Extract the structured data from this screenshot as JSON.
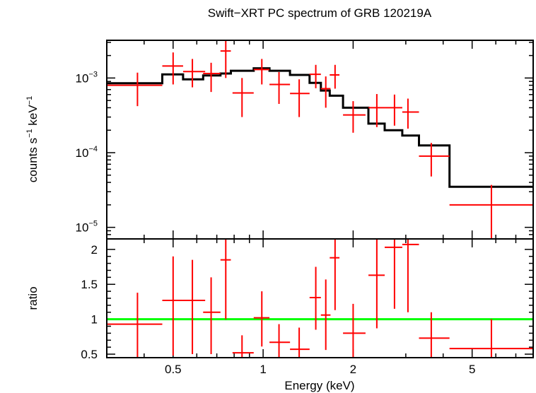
{
  "chart_data": {
    "type": "scatter",
    "title": "Swift−XRT PC spectrum of GRB 120219A",
    "xlabel": "Energy (keV)",
    "x_scale": "log",
    "xlim": [
      0.3,
      8.0
    ],
    "x_ticks": [
      {
        "value": 0.5,
        "label": "0.5"
      },
      {
        "value": 1,
        "label": "1"
      },
      {
        "value": 2,
        "label": "2"
      },
      {
        "value": 5,
        "label": "5"
      }
    ],
    "panels": [
      {
        "id": "spectrum",
        "ylabel": {
          "parts": [
            "counts s",
            "−1",
            " keV",
            "−1"
          ]
        },
        "y_scale": "log",
        "ylim": [
          7e-06,
          0.0032
        ],
        "y_ticks": [
          {
            "value": 0.001,
            "base": "10",
            "exp": "−3"
          },
          {
            "value": 0.0001,
            "base": "10",
            "exp": "−4"
          },
          {
            "value": 1e-05,
            "base": "10",
            "exp": "−5"
          }
        ],
        "data": {
          "name": "",
          "color": "#ff0000",
          "points": [
            {
              "x": 0.38,
              "xlo": 0.3,
              "xhi": 0.46,
              "y": 0.0008,
              "ylo": 0.00042,
              "yhi": 0.00118
            },
            {
              "x": 0.5,
              "xlo": 0.46,
              "xhi": 0.54,
              "y": 0.00145,
              "ylo": 0.00082,
              "yhi": 0.0022
            },
            {
              "x": 0.58,
              "xlo": 0.54,
              "xhi": 0.64,
              "y": 0.00122,
              "ylo": 0.00075,
              "yhi": 0.0018
            },
            {
              "x": 0.67,
              "xlo": 0.63,
              "xhi": 0.72,
              "y": 0.00115,
              "ylo": 0.00065,
              "yhi": 0.0016
            },
            {
              "x": 0.75,
              "xlo": 0.72,
              "xhi": 0.78,
              "y": 0.0023,
              "ylo": 0.001,
              "yhi": 0.0032
            },
            {
              "x": 0.85,
              "xlo": 0.79,
              "xhi": 0.93,
              "y": 0.00063,
              "ylo": 0.0003,
              "yhi": 0.001
            },
            {
              "x": 0.99,
              "xlo": 0.93,
              "xhi": 1.05,
              "y": 0.0013,
              "ylo": 0.00082,
              "yhi": 0.0018
            },
            {
              "x": 1.13,
              "xlo": 1.05,
              "xhi": 1.23,
              "y": 0.00082,
              "ylo": 0.00045,
              "yhi": 0.0012
            },
            {
              "x": 1.32,
              "xlo": 1.23,
              "xhi": 1.43,
              "y": 0.00062,
              "ylo": 0.0003,
              "yhi": 0.00096
            },
            {
              "x": 1.5,
              "xlo": 1.43,
              "xhi": 1.56,
              "y": 0.00112,
              "ylo": 0.00073,
              "yhi": 0.0015
            },
            {
              "x": 1.62,
              "xlo": 1.56,
              "xhi": 1.68,
              "y": 0.00072,
              "ylo": 0.0004,
              "yhi": 0.00105
            },
            {
              "x": 1.74,
              "xlo": 1.67,
              "xhi": 1.8,
              "y": 0.0011,
              "ylo": 0.00072,
              "yhi": 0.0015
            },
            {
              "x": 2.0,
              "xlo": 1.85,
              "xhi": 2.2,
              "y": 0.00032,
              "ylo": 0.000185,
              "yhi": 0.00049
            },
            {
              "x": 2.4,
              "xlo": 2.25,
              "xhi": 2.55,
              "y": 0.0004,
              "ylo": 0.00022,
              "yhi": 0.00061
            },
            {
              "x": 2.75,
              "xlo": 2.55,
              "xhi": 2.92,
              "y": 0.0004,
              "ylo": 0.00023,
              "yhi": 0.0006
            },
            {
              "x": 3.05,
              "xlo": 2.92,
              "xhi": 3.32,
              "y": 0.00035,
              "ylo": 0.00021,
              "yhi": 0.00053
            },
            {
              "x": 3.65,
              "xlo": 3.32,
              "xhi": 4.2,
              "y": 9e-05,
              "ylo": 4.8e-05,
              "yhi": 0.000135
            },
            {
              "x": 5.8,
              "xlo": 4.2,
              "xhi": 8.0,
              "y": 2e-05,
              "ylo": 7e-06,
              "yhi": 3.7e-05
            }
          ]
        },
        "model": {
          "name": "",
          "color": "#000000",
          "steps": [
            {
              "xlo": 0.3,
              "xhi": 0.46,
              "y": 0.00085
            },
            {
              "xlo": 0.46,
              "xhi": 0.54,
              "y": 0.00112
            },
            {
              "xlo": 0.54,
              "xhi": 0.63,
              "y": 0.00096
            },
            {
              "xlo": 0.63,
              "xhi": 0.72,
              "y": 0.00108
            },
            {
              "xlo": 0.72,
              "xhi": 0.78,
              "y": 0.00115
            },
            {
              "xlo": 0.78,
              "xhi": 0.93,
              "y": 0.00125
            },
            {
              "xlo": 0.93,
              "xhi": 1.05,
              "y": 0.00135
            },
            {
              "xlo": 1.05,
              "xhi": 1.23,
              "y": 0.00125
            },
            {
              "xlo": 1.23,
              "xhi": 1.43,
              "y": 0.0011
            },
            {
              "xlo": 1.43,
              "xhi": 1.56,
              "y": 0.00086
            },
            {
              "xlo": 1.56,
              "xhi": 1.67,
              "y": 0.00068
            },
            {
              "xlo": 1.67,
              "xhi": 1.85,
              "y": 0.00058
            },
            {
              "xlo": 1.85,
              "xhi": 2.25,
              "y": 0.0004
            },
            {
              "xlo": 2.25,
              "xhi": 2.55,
              "y": 0.000245
            },
            {
              "xlo": 2.55,
              "xhi": 2.92,
              "y": 0.0002
            },
            {
              "xlo": 2.92,
              "xhi": 3.32,
              "y": 0.00017
            },
            {
              "xlo": 3.32,
              "xhi": 4.2,
              "y": 0.000125
            },
            {
              "xlo": 4.2,
              "xhi": 8.0,
              "y": 3.5e-05
            }
          ]
        }
      },
      {
        "id": "ratio",
        "ylabel": {
          "parts": [
            "ratio"
          ]
        },
        "y_scale": "linear",
        "ylim": [
          0.45,
          2.15
        ],
        "y_ticks": [
          {
            "value": 0.5,
            "label": "0.5"
          },
          {
            "value": 1,
            "label": "1"
          },
          {
            "value": 1.5,
            "label": "1.5"
          },
          {
            "value": 2,
            "label": "2"
          }
        ],
        "reference_line": {
          "y": 1.0,
          "color": "#00ff00"
        },
        "data": {
          "name": "",
          "color": "#ff0000",
          "points": [
            {
              "x": 0.38,
              "xlo": 0.3,
              "xhi": 0.46,
              "y": 0.93,
              "ylo": 0.46,
              "yhi": 1.38
            },
            {
              "x": 0.5,
              "xlo": 0.46,
              "xhi": 0.54,
              "y": 1.27,
              "ylo": 0.48,
              "yhi": 1.9
            },
            {
              "x": 0.58,
              "xlo": 0.54,
              "xhi": 0.64,
              "y": 1.27,
              "ylo": 0.5,
              "yhi": 1.85
            },
            {
              "x": 0.67,
              "xlo": 0.63,
              "xhi": 0.72,
              "y": 1.1,
              "ylo": 0.5,
              "yhi": 1.6
            },
            {
              "x": 0.75,
              "xlo": 0.72,
              "xhi": 0.78,
              "y": 1.85,
              "ylo": 1.0,
              "yhi": 2.15
            },
            {
              "x": 0.85,
              "xlo": 0.79,
              "xhi": 0.93,
              "y": 0.52,
              "ylo": 0.45,
              "yhi": 0.77
            },
            {
              "x": 0.99,
              "xlo": 0.93,
              "xhi": 1.05,
              "y": 1.02,
              "ylo": 0.61,
              "yhi": 1.4
            },
            {
              "x": 1.13,
              "xlo": 1.05,
              "xhi": 1.23,
              "y": 0.67,
              "ylo": 0.45,
              "yhi": 0.93
            },
            {
              "x": 1.32,
              "xlo": 1.23,
              "xhi": 1.43,
              "y": 0.57,
              "ylo": 0.45,
              "yhi": 0.88
            },
            {
              "x": 1.5,
              "xlo": 1.43,
              "xhi": 1.56,
              "y": 1.31,
              "ylo": 0.85,
              "yhi": 1.75
            },
            {
              "x": 1.62,
              "xlo": 1.56,
              "xhi": 1.68,
              "y": 1.06,
              "ylo": 0.56,
              "yhi": 1.57
            },
            {
              "x": 1.74,
              "xlo": 1.67,
              "xhi": 1.8,
              "y": 1.88,
              "ylo": 1.13,
              "yhi": 2.15
            },
            {
              "x": 2.0,
              "xlo": 1.85,
              "xhi": 2.2,
              "y": 0.8,
              "ylo": 0.45,
              "yhi": 1.22
            },
            {
              "x": 2.4,
              "xlo": 2.25,
              "xhi": 2.55,
              "y": 1.63,
              "ylo": 0.87,
              "yhi": 2.15
            },
            {
              "x": 2.75,
              "xlo": 2.55,
              "xhi": 2.92,
              "y": 2.03,
              "ylo": 1.15,
              "yhi": 2.15
            },
            {
              "x": 3.05,
              "xlo": 2.92,
              "xhi": 3.32,
              "y": 2.07,
              "ylo": 1.1,
              "yhi": 2.15
            },
            {
              "x": 3.65,
              "xlo": 3.32,
              "xhi": 4.2,
              "y": 0.73,
              "ylo": 0.45,
              "yhi": 1.1
            },
            {
              "x": 5.8,
              "xlo": 4.2,
              "xhi": 8.0,
              "y": 0.58,
              "ylo": 0.45,
              "yhi": 1.0
            }
          ]
        }
      }
    ]
  }
}
